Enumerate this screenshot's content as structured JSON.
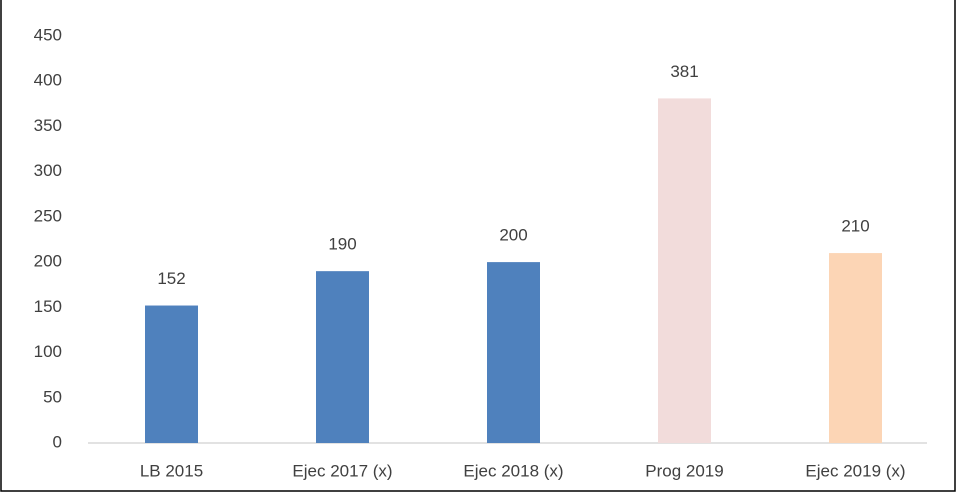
{
  "chart_data": {
    "type": "bar",
    "categories": [
      "LB 2015",
      "Ejec 2017 (x)",
      "Ejec 2018 (x)",
      "Prog 2019",
      "Ejec 2019 (x)"
    ],
    "values": [
      152,
      190,
      200,
      381,
      210
    ],
    "colors": [
      "#4f81bd",
      "#4f81bd",
      "#4f81bd",
      "#f2dcdb",
      "#fcd5b5"
    ],
    "ylim": [
      0,
      450
    ],
    "yticks": [
      0,
      50,
      100,
      150,
      200,
      250,
      300,
      350,
      400,
      450
    ],
    "grid": false,
    "data_labels": true
  }
}
